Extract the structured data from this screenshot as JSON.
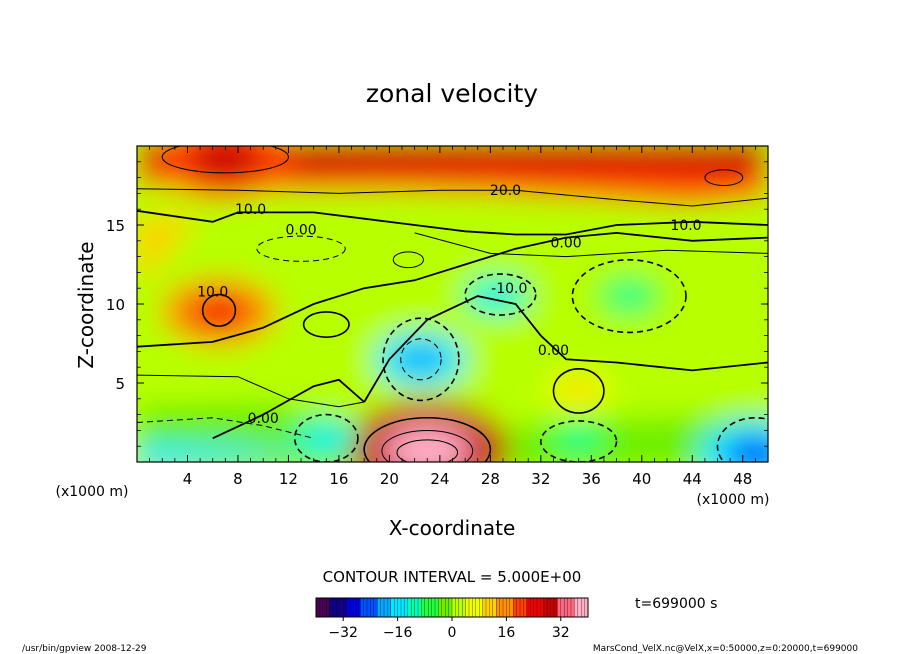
{
  "chart_data": {
    "type": "heatmap",
    "title": "zonal velocity",
    "xlabel": "X-coordinate",
    "ylabel": "Z-coordinate",
    "x_unit": "(x1000 m)",
    "y_unit": "(x1000 m)",
    "xlim": [
      0,
      50
    ],
    "ylim": [
      0,
      20
    ],
    "x_ticks": [
      4,
      8,
      12,
      16,
      20,
      24,
      28,
      32,
      36,
      40,
      44,
      48
    ],
    "y_ticks": [
      5,
      10,
      15
    ],
    "contour_interval_text": "CONTOUR INTERVAL = 5.000E+00",
    "time_label": "t=699000 s",
    "colorbar": {
      "min": -40,
      "max": 40,
      "ticks": [
        -32,
        -16,
        0,
        16,
        32
      ],
      "colors": [
        "#4b0058",
        "#10008a",
        "#0000e0",
        "#0050ff",
        "#00a8ff",
        "#00e8ff",
        "#00ffb0",
        "#20ff40",
        "#6cf000",
        "#b8ff00",
        "#f0ff00",
        "#ffd000",
        "#ff9000",
        "#ff4000",
        "#f00000",
        "#c80000",
        "#ff6680",
        "#ffb0c8"
      ]
    },
    "contour_labels": [
      {
        "text": "20.0",
        "x": 29.2,
        "z": 17.2
      },
      {
        "text": "10.0",
        "x": 9.0,
        "z": 16.0
      },
      {
        "text": "10.0",
        "x": 43.5,
        "z": 15.0
      },
      {
        "text": "0.00",
        "x": 13.0,
        "z": 14.7
      },
      {
        "text": "0.00",
        "x": 34.0,
        "z": 13.9
      },
      {
        "text": "-10.0",
        "x": 29.5,
        "z": 11.0
      },
      {
        "text": "10.0",
        "x": 6.0,
        "z": 10.8
      },
      {
        "text": "0.00",
        "x": 33.0,
        "z": 7.1
      },
      {
        "text": "0.00",
        "x": 10.0,
        "z": 2.8
      }
    ],
    "features": [
      {
        "type": "max",
        "x": 7,
        "z": 19.2,
        "value": 30
      },
      {
        "type": "max",
        "x": 23,
        "z": 0.8,
        "value": 40
      },
      {
        "type": "max",
        "x": 6.5,
        "z": 9.5,
        "value": 25
      },
      {
        "type": "min",
        "x": 22.5,
        "z": 6.5,
        "value": -20
      },
      {
        "type": "min",
        "x": 28.5,
        "z": 10.5,
        "value": -15
      },
      {
        "type": "min",
        "x": 39,
        "z": 10.5,
        "value": -10
      },
      {
        "type": "min",
        "x": 15,
        "z": 1.5,
        "value": -15
      },
      {
        "type": "min",
        "x": 35,
        "z": 1.5,
        "value": -12
      },
      {
        "type": "min",
        "x": 49,
        "z": 0.5,
        "value": -25
      },
      {
        "type": "max",
        "x": 35,
        "z": 4.5,
        "value": 10
      }
    ]
  },
  "footer": {
    "left": "/usr/bin/gpview   2008-12-29",
    "right": "MarsCond_VelX.nc@VelX,x=0:50000,z=0:20000,t=699000"
  }
}
